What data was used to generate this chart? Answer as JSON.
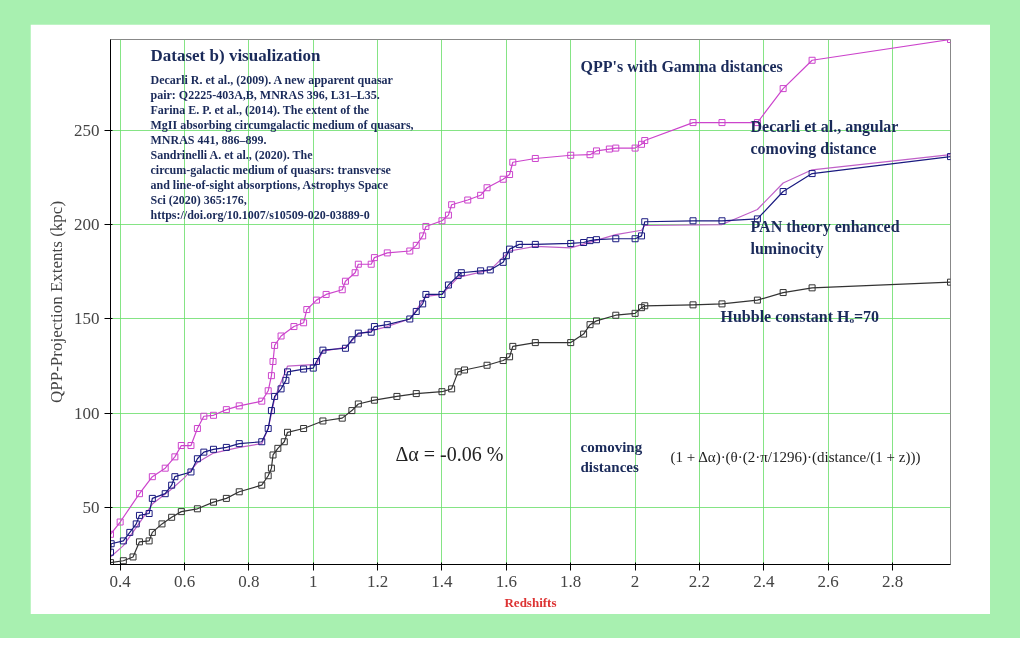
{
  "chart_data": {
    "type": "line",
    "title": "Dataset b) visualization",
    "xlabel": "Redshifts",
    "ylabel": "QPP-Projection Extents (kpc)",
    "xlim": [
      0.37,
      2.98
    ],
    "ylim": [
      20,
      298
    ],
    "xticks": [
      0.4,
      0.6,
      0.8,
      1,
      1.2,
      1.4,
      1.6,
      1.8,
      2,
      2.2,
      2.4,
      2.6,
      2.8
    ],
    "yticks": [
      50,
      100,
      150,
      200,
      250
    ],
    "grid": true,
    "marker": "square",
    "line_style": "solid",
    "annotations": [
      "Decarli R. et al., (2009). A new apparent quasar pair: Q2225-403A,B,  MNRAS 396, L31–L35.",
      "Farina E. P. et al., (2014).  The extent of the MgII absorbing circumgalactic medium of quasars, MNRAS 441, 886–899.",
      "Sandrinelli A. et al., (2020). The circum-galactic medium of quasars: transverse and line-of-sight absorptions, Astrophys Space Sci (2020) 365:176, https://doi.org/10.1007/s10509-020-03889-0",
      "Δα = -0.06   %",
      "comoving distances",
      "(1 + Δα)·(θ·(2·π/1296)·(distance/(1 + z)))"
    ],
    "series": [
      {
        "name": "QPP's with Gamma distances",
        "color": "#cc44cc",
        "x": [
          0.37,
          0.4,
          0.46,
          0.5,
          0.54,
          0.57,
          0.59,
          0.62,
          0.64,
          0.66,
          0.69,
          0.73,
          0.77,
          0.84,
          0.86,
          0.87,
          0.875,
          0.88,
          0.9,
          0.94,
          0.97,
          0.98,
          1.01,
          1.04,
          1.09,
          1.1,
          1.13,
          1.14,
          1.18,
          1.19,
          1.23,
          1.3,
          1.32,
          1.34,
          1.35,
          1.4,
          1.42,
          1.43,
          1.48,
          1.52,
          1.54,
          1.59,
          1.61,
          1.62,
          1.69,
          1.8,
          1.86,
          1.88,
          1.92,
          1.94,
          2.0,
          2.02,
          2.03,
          2.18,
          2.27,
          2.38,
          2.46,
          2.55,
          2.98
        ],
        "values": [
          36,
          42.5,
          57.5,
          66.5,
          71,
          77,
          83,
          83,
          92,
          98.5,
          99,
          102,
          104,
          106.5,
          112,
          120,
          127.5,
          136,
          141,
          146,
          148,
          155,
          160,
          163,
          165.5,
          170,
          174.5,
          179,
          179,
          182.5,
          185,
          186,
          189,
          194,
          199,
          202,
          205,
          210.5,
          213,
          215.5,
          219.5,
          224,
          226.5,
          233,
          235,
          236.7,
          237,
          239,
          240,
          240.5,
          240.5,
          242.5,
          244.5,
          254,
          254,
          254,
          272,
          287,
          298
        ]
      },
      {
        "name": "Decarli et al., angular comoving distance",
        "color": "#c060c8",
        "marker": "none",
        "x": [
          0.37,
          0.41,
          0.46,
          0.5,
          0.56,
          0.6,
          0.64,
          0.69,
          0.77,
          0.84,
          0.86,
          0.88,
          0.92,
          1.01,
          1.03,
          1.1,
          1.14,
          1.23,
          1.3,
          1.35,
          1.4,
          1.45,
          1.55,
          1.61,
          1.69,
          1.8,
          1.94,
          2.02,
          2.03,
          2.27,
          2.38,
          2.46,
          2.55,
          2.98
        ],
        "values": [
          24,
          30,
          42,
          52,
          60,
          66,
          74,
          79,
          82,
          84,
          92,
          108,
          125,
          126,
          133,
          135,
          142,
          146,
          150,
          162,
          163,
          172,
          176,
          186,
          188.5,
          187.7,
          194.7,
          197,
          199.5,
          200,
          208,
          222,
          229,
          237
        ]
      },
      {
        "name": "PAN theory enhanced luminocity",
        "color": "#1a1a80",
        "x": [
          0.37,
          0.372,
          0.41,
          0.43,
          0.45,
          0.46,
          0.49,
          0.5,
          0.54,
          0.56,
          0.57,
          0.62,
          0.64,
          0.66,
          0.69,
          0.73,
          0.77,
          0.84,
          0.86,
          0.87,
          0.88,
          0.9,
          0.915,
          0.92,
          0.97,
          1.0,
          1.01,
          1.03,
          1.1,
          1.12,
          1.14,
          1.18,
          1.19,
          1.23,
          1.3,
          1.32,
          1.34,
          1.35,
          1.4,
          1.42,
          1.45,
          1.46,
          1.52,
          1.55,
          1.59,
          1.6,
          1.61,
          1.64,
          1.69,
          1.8,
          1.84,
          1.86,
          1.88,
          1.94,
          2.0,
          2.02,
          2.03,
          2.18,
          2.27,
          2.38,
          2.46,
          2.55,
          2.98
        ],
        "values": [
          26.5,
          31,
          32.5,
          37,
          41.5,
          46,
          47,
          55,
          57.5,
          62,
          66.5,
          69,
          76,
          79.5,
          81,
          82,
          84,
          85,
          92,
          101.5,
          109,
          113,
          117.5,
          122,
          123.5,
          124,
          127.5,
          133.5,
          134.5,
          139,
          142.5,
          143,
          146,
          147,
          150,
          154,
          158,
          163,
          163,
          168,
          173,
          174.5,
          175.5,
          176,
          180,
          183.5,
          187,
          189.5,
          189.5,
          190,
          190.5,
          191.5,
          192,
          192.5,
          192.5,
          194,
          201.5,
          202,
          202,
          203,
          217.5,
          227,
          236
        ]
      },
      {
        "name": "Hubble constant Hₒ=70",
        "color": "#333333",
        "x": [
          0.37,
          0.41,
          0.44,
          0.46,
          0.49,
          0.5,
          0.53,
          0.56,
          0.59,
          0.64,
          0.69,
          0.73,
          0.77,
          0.84,
          0.86,
          0.87,
          0.875,
          0.89,
          0.91,
          0.92,
          0.97,
          1.03,
          1.09,
          1.12,
          1.14,
          1.19,
          1.26,
          1.32,
          1.4,
          1.43,
          1.45,
          1.47,
          1.54,
          1.59,
          1.61,
          1.62,
          1.69,
          1.8,
          1.84,
          1.86,
          1.88,
          1.94,
          2.0,
          2.02,
          2.03,
          2.18,
          2.27,
          2.38,
          2.46,
          2.55,
          2.98
        ],
        "values": [
          21,
          22,
          24,
          32,
          32.5,
          37,
          41.5,
          45,
          48,
          49.5,
          53,
          55,
          58.5,
          62,
          67,
          71,
          78,
          81.5,
          85,
          90,
          92,
          96,
          97.5,
          101.5,
          105,
          107,
          109,
          110.5,
          111.5,
          113,
          122,
          123,
          125.5,
          128,
          130,
          135.5,
          137.5,
          137.5,
          142,
          147,
          149,
          152,
          153,
          156,
          157,
          157.5,
          158,
          160,
          164,
          166.5,
          169.5
        ]
      }
    ]
  }
}
